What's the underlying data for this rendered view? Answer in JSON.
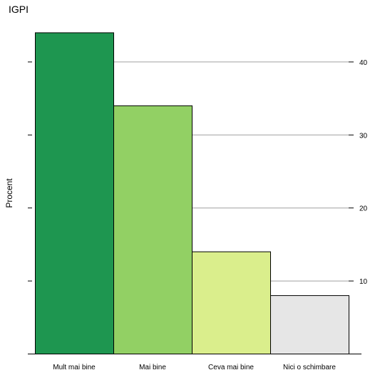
{
  "chart_data": {
    "type": "bar",
    "title": "IGPI",
    "ylabel": "Procent",
    "xlabel": "",
    "categories": [
      "Mult mai bine",
      "Mai bine",
      "Ceva mai bine",
      "Nici o schimbare"
    ],
    "values": [
      44,
      34,
      14,
      8
    ],
    "colors": [
      "#1e9650",
      "#92d064",
      "#daee8c",
      "#e6e6e6"
    ],
    "ylim": [
      0,
      46
    ],
    "yticks": [
      10,
      20,
      30,
      40
    ],
    "grid": true
  }
}
